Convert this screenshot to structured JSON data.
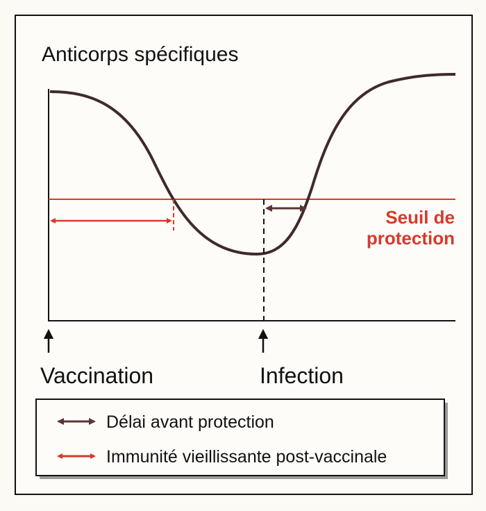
{
  "title": "Anticorps spécifiques",
  "threshold_label": {
    "line1": "Seuil de",
    "line2": "protection"
  },
  "events": {
    "vaccination": "Vaccination",
    "infection": "Infection"
  },
  "legend": [
    {
      "label": "Délai avant protection",
      "color": "#5a3434"
    },
    {
      "label": "Immunité vieillissante post-vaccinale",
      "color": "#d63a2a"
    }
  ],
  "colors": {
    "curve": "#3f2a2a",
    "threshold": "#d63a2a",
    "axis": "#111111"
  }
}
